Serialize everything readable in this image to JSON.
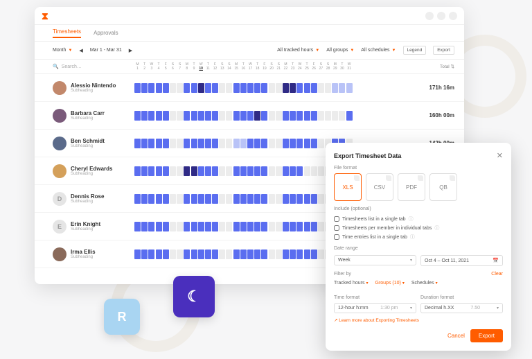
{
  "colors": {
    "accent": "#ff5c00",
    "cell_blue": "#5a6df0",
    "cell_darkblue": "#2f2a85",
    "cell_lightblue": "#b9c3f7",
    "cell_empty": "#ececec"
  },
  "topbar": {
    "logo_glyph": "⌛"
  },
  "tabs": {
    "items": [
      {
        "label": "Timesheets",
        "active": true
      },
      {
        "label": "Approvals",
        "active": false
      }
    ]
  },
  "tools": {
    "period_label": "Month",
    "date_range": "Mar 1 - Mar 31",
    "filter_hours": "All tracked hours",
    "filter_groups": "All groups",
    "filter_schedules": "All schedules",
    "legend_btn": "Legend",
    "export_btn": "Export"
  },
  "grid": {
    "search_placeholder": "Search…",
    "day_labels": [
      "M",
      "T",
      "W",
      "T",
      "F",
      "S",
      "S",
      "M",
      "T",
      "W",
      "T",
      "F",
      "S",
      "S",
      "M",
      "T",
      "W",
      "T",
      "F",
      "S",
      "S",
      "M",
      "T",
      "W",
      "T",
      "F",
      "S",
      "S",
      "M",
      "T",
      "W"
    ],
    "day_nums": [
      "1",
      "2",
      "3",
      "4",
      "5",
      "6",
      "7",
      "8",
      "9",
      "10",
      "11",
      "12",
      "13",
      "14",
      "15",
      "16",
      "17",
      "18",
      "19",
      "20",
      "21",
      "22",
      "23",
      "24",
      "25",
      "26",
      "27",
      "28",
      "29",
      "30",
      "31"
    ],
    "highlight_day": 10,
    "total_header": "Total",
    "sort_glyph": "⇅"
  },
  "people": [
    {
      "name": "Alessio Nintendo",
      "sub": "Subheading",
      "total": "171h 16m",
      "avatar": "photo",
      "avatar_color": "#c2886b",
      "cells": [
        "b",
        "b",
        "b",
        "b",
        "b",
        "e",
        "e",
        "b",
        "b",
        "d",
        "b",
        "b",
        "e",
        "e",
        "b",
        "b",
        "b",
        "b",
        "b",
        "e",
        "e",
        "d",
        "d",
        "b",
        "b",
        "b",
        "e",
        "e",
        "l",
        "l",
        "l"
      ]
    },
    {
      "name": "Barbara Carr",
      "sub": "Subheading",
      "total": "160h 00m",
      "avatar": "photo",
      "avatar_color": "#7a5a7a",
      "cells": [
        "b",
        "b",
        "b",
        "b",
        "b",
        "e",
        "e",
        "b",
        "b",
        "b",
        "b",
        "b",
        "e",
        "e",
        "b",
        "b",
        "b",
        "d",
        "b",
        "e",
        "e",
        "b",
        "b",
        "b",
        "b",
        "b",
        "e",
        "e",
        "e",
        "e",
        "b"
      ]
    },
    {
      "name": "Ben Schmidt",
      "sub": "Subheading",
      "total": "142h 00m",
      "avatar": "photo",
      "avatar_color": "#5a6a8a",
      "cells": [
        "b",
        "b",
        "b",
        "b",
        "b",
        "e",
        "e",
        "b",
        "b",
        "b",
        "b",
        "b",
        "e",
        "e",
        "l",
        "l",
        "b",
        "b",
        "b",
        "e",
        "e",
        "b",
        "b",
        "b",
        "b",
        "b",
        "e",
        "e",
        "b",
        "b",
        "e"
      ]
    },
    {
      "name": "Cheryl Edwards",
      "sub": "Subheading",
      "total": "",
      "avatar": "photo",
      "avatar_color": "#d4a05a",
      "cells": [
        "b",
        "b",
        "b",
        "b",
        "b",
        "e",
        "e",
        "d",
        "d",
        "b",
        "b",
        "b",
        "e",
        "e",
        "b",
        "b",
        "b",
        "b",
        "b",
        "e",
        "e",
        "b",
        "b",
        "b",
        "e",
        "e",
        "e",
        "e",
        "l",
        "l",
        "e"
      ]
    },
    {
      "name": "Dennis Rose",
      "sub": "Subheading",
      "total": "",
      "avatar": "D",
      "avatar_color": "#e5e5e5",
      "cells": [
        "b",
        "b",
        "b",
        "b",
        "b",
        "e",
        "e",
        "b",
        "b",
        "b",
        "b",
        "b",
        "e",
        "e",
        "b",
        "b",
        "b",
        "b",
        "b",
        "e",
        "e",
        "b",
        "b",
        "b",
        "b",
        "b",
        "e",
        "e",
        "b",
        "b",
        "b"
      ]
    },
    {
      "name": "Erin Knight",
      "sub": "Subheading",
      "total": "",
      "avatar": "E",
      "avatar_color": "#e5e5e5",
      "cells": [
        "b",
        "b",
        "b",
        "b",
        "b",
        "e",
        "e",
        "b",
        "b",
        "b",
        "b",
        "b",
        "e",
        "e",
        "b",
        "b",
        "b",
        "b",
        "b",
        "e",
        "e",
        "b",
        "b",
        "b",
        "b",
        "b",
        "e",
        "e",
        "b",
        "b",
        "b"
      ]
    },
    {
      "name": "Irma Ellis",
      "sub": "Subheading",
      "total": "",
      "avatar": "photo",
      "avatar_color": "#8a6a5a",
      "cells": [
        "b",
        "b",
        "b",
        "b",
        "b",
        "e",
        "e",
        "b",
        "b",
        "b",
        "b",
        "b",
        "e",
        "e",
        "b",
        "b",
        "b",
        "b",
        "b",
        "e",
        "e",
        "b",
        "b",
        "b",
        "b",
        "b",
        "e",
        "e",
        "b",
        "b",
        "b"
      ]
    }
  ],
  "cell_palette": {
    "b": "#5a6df0",
    "d": "#2f2a85",
    "l": "#b9c3f7",
    "e": "#ececec"
  },
  "tiles": {
    "r": "R",
    "moon": "☾"
  },
  "modal": {
    "title": "Export Timesheet Data",
    "sec_format": "File format",
    "sec_include": "Include (optional)",
    "sec_range": "Date range",
    "sec_filter": "Filter by",
    "sec_timefmt": "Time format",
    "sec_durfmt": "Duration format",
    "formats": [
      {
        "label": "XLS",
        "selected": true
      },
      {
        "label": "CSV",
        "selected": false
      },
      {
        "label": "PDF",
        "selected": false
      },
      {
        "label": "QB",
        "selected": false
      }
    ],
    "include_opts": [
      "Timesheets list in a single tab",
      "Timesheets per member in individual tabs",
      "Time entries list in a single tab"
    ],
    "range_select": "Week",
    "range_value": "Oct 4 – Oct 11, 2021",
    "filters": {
      "tracked": "Tracked hours",
      "groups": "Groups (10)",
      "schedules": "Schedules",
      "clear": "Clear"
    },
    "time_format_value": "12-hour h:mm",
    "time_format_example": "1:30 pm",
    "duration_format_value": "Decimal h.XX",
    "duration_format_example": "7.50",
    "learn_more": "Learn more about Exporting Timesheets",
    "cancel_btn": "Cancel",
    "export_btn": "Export"
  }
}
